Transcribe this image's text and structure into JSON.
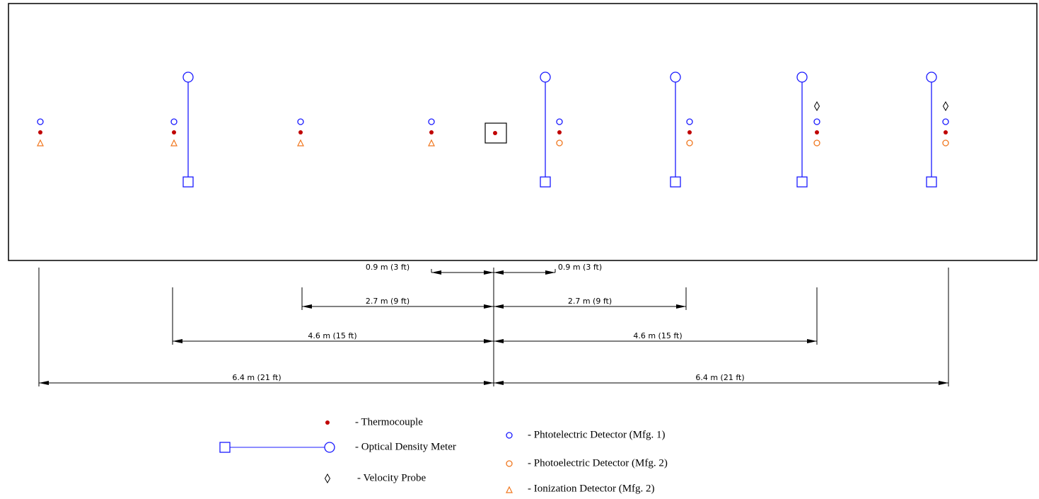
{
  "dimensions": [
    {
      "left": "0.9 m (3 ft)",
      "right": "0.9 m (3 ft)"
    },
    {
      "left": "2.7 m (9 ft)",
      "right": "2.7 m (9 ft)"
    },
    {
      "left": "4.6 m (15 ft)",
      "right": "4.6 m (15 ft)"
    },
    {
      "left": "6.4 m (21 ft)",
      "right": "6.4 m (21 ft)"
    }
  ],
  "legend": {
    "thermocouple": "- Thermocouple",
    "optical_density_meter": "- Optical Density Meter",
    "velocity_probe": "- Velocity Probe",
    "photoelectric_mfg1": "- Phtotelectric Detector (Mfg. 1)",
    "photoelectric_mfg2": "- Photoelectric Detector (Mfg. 2)",
    "ionization_mfg2": "- Ionization Detector (Mfg. 2)"
  }
}
